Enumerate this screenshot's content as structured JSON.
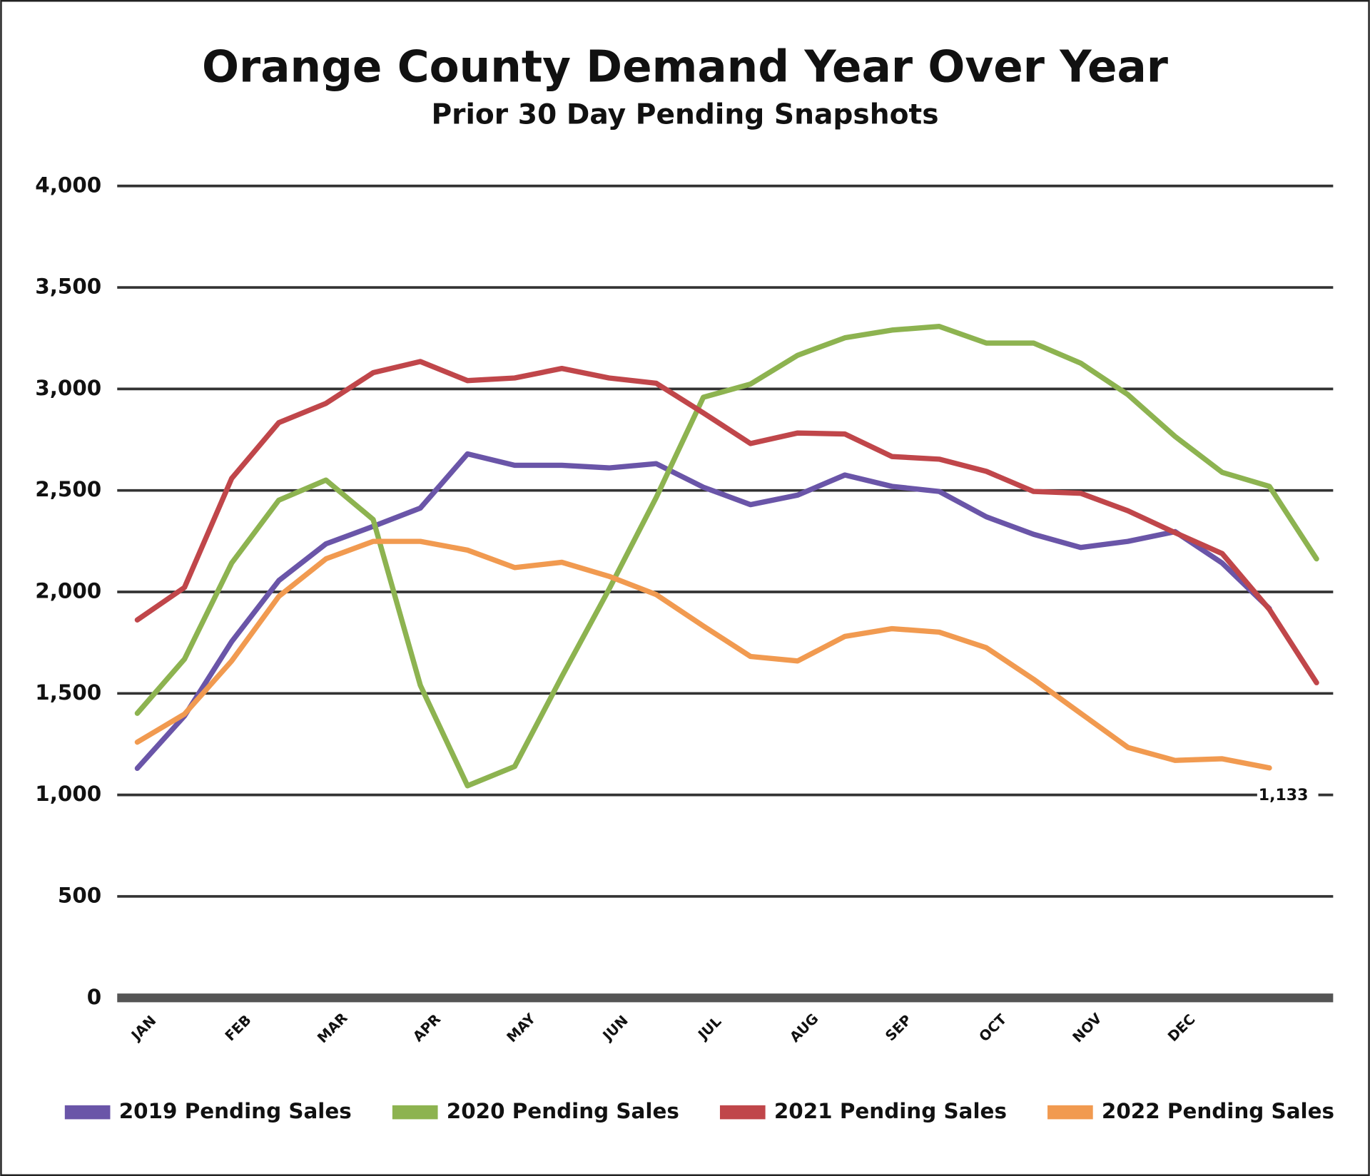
{
  "chart_data": {
    "type": "line",
    "title": "Orange County Demand Year Over Year",
    "subtitle": "Prior 30 Day Pending Snapshots",
    "categories": [
      "JAN",
      null,
      "FEB",
      null,
      "MAR",
      null,
      "APR",
      null,
      "MAY",
      null,
      "JUN",
      null,
      "JUL",
      null,
      "AUG",
      null,
      "SEP",
      null,
      "OCT",
      null,
      "NOV",
      null,
      "DEC",
      null,
      null,
      null
    ],
    "series": [
      {
        "name": "2019 Pending Sales",
        "color": "#6a55a8",
        "values": [
          1131,
          1389,
          1755,
          2056,
          2237,
          2323,
          2413,
          2680,
          2624,
          2624,
          2611,
          2632,
          2516,
          2430,
          2477,
          2576,
          2520,
          2495,
          2370,
          2284,
          2219,
          2249,
          2297,
          2142,
          1918,
          null
        ]
      },
      {
        "name": "2020 Pending Sales",
        "color": "#8db350",
        "values": [
          1402,
          1669,
          2142,
          2452,
          2551,
          2357,
          1540,
          1045,
          1140,
          1583,
          2013,
          2465,
          2959,
          3024,
          3166,
          3252,
          3290,
          3308,
          3226,
          3226,
          3127,
          2972,
          2766,
          2589,
          2520,
          2163
        ]
      },
      {
        "name": "2021 Pending Sales",
        "color": "#c0464a",
        "values": [
          1862,
          2022,
          2559,
          2834,
          2929,
          3080,
          3135,
          3041,
          3054,
          3101,
          3054,
          3028,
          2882,
          2731,
          2783,
          2778,
          2667,
          2654,
          2594,
          2495,
          2486,
          2400,
          2292,
          2189,
          1914,
          1553
        ]
      },
      {
        "name": "2022 Pending Sales",
        "color": "#f19a50",
        "values": [
          1260,
          1398,
          1660,
          1978,
          2163,
          2249,
          2249,
          2206,
          2120,
          2146,
          2077,
          1987,
          1832,
          1682,
          1660,
          1781,
          1819,
          1802,
          1725,
          1570,
          1402,
          1234,
          1170,
          1178,
          1133,
          null
        ],
        "value_labels": [
          null,
          null,
          null,
          null,
          null,
          null,
          null,
          null,
          null,
          null,
          null,
          null,
          null,
          null,
          null,
          null,
          null,
          null,
          null,
          null,
          null,
          null,
          null,
          null,
          "1,133",
          null
        ]
      }
    ],
    "ylim": [
      0,
      4000
    ],
    "yticks": [
      0,
      500,
      {
        "value": 1000,
        "label": "1,000"
      },
      {
        "value": 1500,
        "label": "1,500"
      },
      {
        "value": 2000,
        "label": "2,000"
      },
      {
        "value": 2500,
        "label": "2,500"
      },
      {
        "value": 3000,
        "label": "3,000"
      },
      {
        "value": 3500,
        "label": "3,500"
      },
      {
        "value": 4000,
        "label": "4,000"
      }
    ],
    "grid": true,
    "legend": "bottom"
  }
}
